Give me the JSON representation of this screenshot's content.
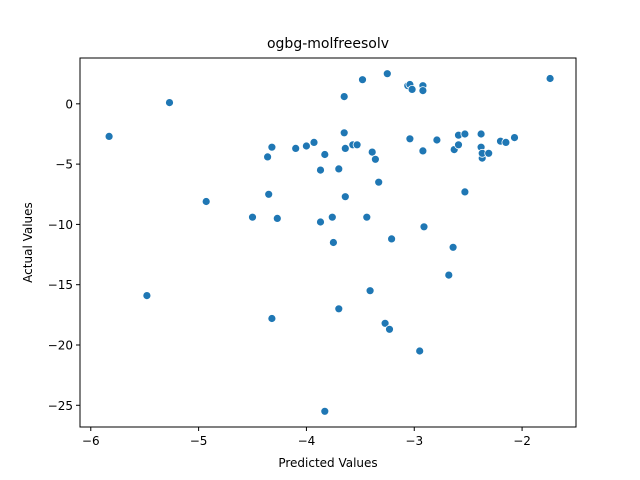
{
  "chart_data": {
    "type": "scatter",
    "title": "ogbg-molfreesolv",
    "xlabel": "Predicted Values",
    "ylabel": "Actual Values",
    "xlim": [
      -6.1,
      -1.5
    ],
    "ylim": [
      -26.8,
      3.8
    ],
    "xticks": [
      -6,
      -5,
      -4,
      -3,
      -2
    ],
    "yticks": [
      0,
      -5,
      -10,
      -15,
      -20,
      -25
    ],
    "xtick_labels": [
      "−6",
      "−5",
      "−4",
      "−3",
      "−2"
    ],
    "ytick_labels": [
      "0",
      "−5",
      "−10",
      "−15",
      "−20",
      "−25"
    ],
    "grid": false,
    "color": "#1f77b4",
    "points": [
      {
        "x": -5.83,
        "y": -2.7
      },
      {
        "x": -5.27,
        "y": 0.1
      },
      {
        "x": -5.48,
        "y": -15.9
      },
      {
        "x": -4.93,
        "y": -8.1
      },
      {
        "x": -4.5,
        "y": -9.4
      },
      {
        "x": -4.36,
        "y": -4.4
      },
      {
        "x": -4.35,
        "y": -7.5
      },
      {
        "x": -4.32,
        "y": -3.6
      },
      {
        "x": -4.32,
        "y": -17.8
      },
      {
        "x": -4.27,
        "y": -9.5
      },
      {
        "x": -4.1,
        "y": -3.7
      },
      {
        "x": -4.0,
        "y": -3.5
      },
      {
        "x": -3.93,
        "y": -3.2
      },
      {
        "x": -3.87,
        "y": -5.5
      },
      {
        "x": -3.87,
        "y": -9.8
      },
      {
        "x": -3.83,
        "y": -4.2
      },
      {
        "x": -3.83,
        "y": -25.5
      },
      {
        "x": -3.76,
        "y": -9.4
      },
      {
        "x": -3.75,
        "y": -11.5
      },
      {
        "x": -3.7,
        "y": -5.4
      },
      {
        "x": -3.7,
        "y": -17.0
      },
      {
        "x": -3.65,
        "y": 0.6
      },
      {
        "x": -3.65,
        "y": -2.4
      },
      {
        "x": -3.64,
        "y": -3.7
      },
      {
        "x": -3.64,
        "y": -7.7
      },
      {
        "x": -3.57,
        "y": -3.4
      },
      {
        "x": -3.53,
        "y": -3.4
      },
      {
        "x": -3.48,
        "y": 2.0
      },
      {
        "x": -3.44,
        "y": -9.4
      },
      {
        "x": -3.41,
        "y": -15.5
      },
      {
        "x": -3.39,
        "y": -4.0
      },
      {
        "x": -3.36,
        "y": -4.6
      },
      {
        "x": -3.33,
        "y": -6.5
      },
      {
        "x": -3.27,
        "y": -18.2
      },
      {
        "x": -3.25,
        "y": 2.5
      },
      {
        "x": -3.23,
        "y": -18.7
      },
      {
        "x": -3.21,
        "y": -11.2
      },
      {
        "x": -3.06,
        "y": 1.5
      },
      {
        "x": -3.04,
        "y": 1.6
      },
      {
        "x": -3.04,
        "y": -2.9
      },
      {
        "x": -3.02,
        "y": 1.2
      },
      {
        "x": -2.95,
        "y": -20.5
      },
      {
        "x": -2.92,
        "y": 1.5
      },
      {
        "x": -2.92,
        "y": 1.1
      },
      {
        "x": -2.92,
        "y": -3.9
      },
      {
        "x": -2.91,
        "y": -10.2
      },
      {
        "x": -2.79,
        "y": -3.0
      },
      {
        "x": -2.68,
        "y": -14.2
      },
      {
        "x": -2.64,
        "y": -11.9
      },
      {
        "x": -2.63,
        "y": -3.8
      },
      {
        "x": -2.59,
        "y": -2.6
      },
      {
        "x": -2.59,
        "y": -3.4
      },
      {
        "x": -2.53,
        "y": -2.5
      },
      {
        "x": -2.53,
        "y": -7.3
      },
      {
        "x": -2.38,
        "y": -2.5
      },
      {
        "x": -2.38,
        "y": -3.6
      },
      {
        "x": -2.37,
        "y": -4.5
      },
      {
        "x": -2.37,
        "y": -4.1
      },
      {
        "x": -2.31,
        "y": -4.1
      },
      {
        "x": -2.2,
        "y": -3.1
      },
      {
        "x": -2.15,
        "y": -3.2
      },
      {
        "x": -2.07,
        "y": -2.8
      },
      {
        "x": -1.74,
        "y": 2.1
      }
    ]
  }
}
